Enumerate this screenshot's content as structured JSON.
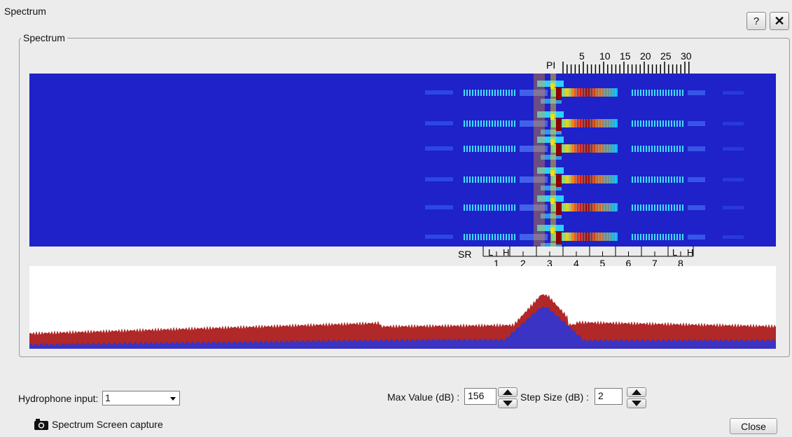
{
  "window": {
    "title": "Spectrum",
    "help_label": "?",
    "close_label": "✕"
  },
  "group": {
    "legend": "Spectrum"
  },
  "pi_scale": {
    "label": "PI",
    "ticks": [
      "5",
      "10",
      "15",
      "20",
      "25",
      "30"
    ]
  },
  "sr_scale": {
    "label": "SR",
    "low": "L",
    "high": "H",
    "bands": [
      "1",
      "2",
      "3",
      "4",
      "5",
      "6",
      "7",
      "8"
    ]
  },
  "controls": {
    "hydrophone_label": "Hydrophone input:",
    "hydrophone_value": "1",
    "max_value_label": "Max Value (dB) :",
    "max_value": "156",
    "step_size_label": "Step Size (dB) :",
    "step_size": "2",
    "capture_label": "Spectrum Screen capture",
    "close_label": "Close"
  },
  "colors": {
    "background": "#ececec",
    "spectrogram_bg": "#1e22c8",
    "max_trace": "#b02828",
    "avg_trace": "#3a33c4"
  },
  "icons": {
    "camera": "camera-icon",
    "help": "help-icon",
    "close": "close-icon",
    "dropdown": "chevron-down-icon"
  }
}
